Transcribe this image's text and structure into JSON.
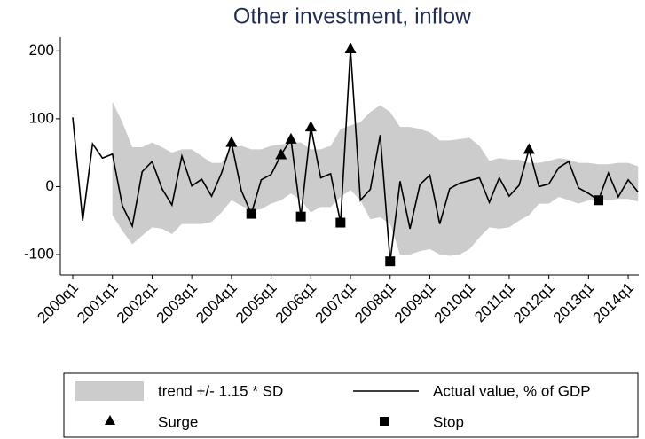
{
  "chart_data": {
    "type": "line",
    "title": "Other investment, inflow",
    "categories": [
      "2000q1",
      null,
      null,
      null,
      "2001q1",
      null,
      null,
      null,
      "2002q1",
      null,
      null,
      null,
      "2003q1",
      null,
      null,
      null,
      "2004q1",
      null,
      null,
      null,
      "2005q1",
      null,
      null,
      null,
      "2006q1",
      null,
      null,
      null,
      "2007q1",
      null,
      null,
      null,
      "2008q1",
      null,
      null,
      null,
      "2009q1",
      null,
      null,
      null,
      "2010q1",
      null,
      null,
      null,
      "2011q1",
      null,
      null,
      null,
      "2012q1",
      null,
      null,
      null,
      "2013q1",
      null,
      null,
      null,
      "2014q1",
      null
    ],
    "band": {
      "name": "trend +/- 1.15 * SD",
      "color": "#cccccc",
      "upper": [
        null,
        null,
        null,
        null,
        125,
        95,
        58,
        58,
        65,
        58,
        50,
        55,
        55,
        45,
        35,
        35,
        58,
        60,
        55,
        55,
        60,
        62,
        65,
        65,
        55,
        55,
        60,
        85,
        90,
        95,
        110,
        120,
        110,
        88,
        88,
        85,
        80,
        68,
        68,
        70,
        72,
        60,
        38,
        42,
        40,
        40,
        35,
        35,
        38,
        42,
        40,
        35,
        35,
        33,
        33,
        35,
        35,
        30
      ],
      "lower": [
        null,
        null,
        null,
        null,
        -42,
        -65,
        -85,
        -72,
        -60,
        -62,
        -70,
        -55,
        -55,
        -55,
        -52,
        -38,
        -20,
        -28,
        -35,
        -33,
        -25,
        -20,
        -10,
        -20,
        -38,
        -30,
        -30,
        -15,
        -5,
        -20,
        -48,
        -45,
        -55,
        -100,
        -100,
        -95,
        -92,
        -100,
        -102,
        -100,
        -92,
        -75,
        -60,
        -62,
        -60,
        -50,
        -42,
        -25,
        -25,
        -15,
        -20,
        -25,
        -20,
        -18,
        -20,
        -18,
        -18,
        -22
      ]
    },
    "series": [
      {
        "name": "Actual value, % of GDP",
        "color": "#000000",
        "marker": "line",
        "values": [
          102,
          -50,
          63,
          42,
          48,
          -28,
          -58,
          22,
          37,
          -3,
          -27,
          45,
          1,
          11,
          -14,
          20,
          65,
          -6,
          -40,
          10,
          18,
          47,
          70,
          -44,
          88,
          13,
          19,
          -53,
          203,
          -20,
          -4,
          76,
          -110,
          8,
          -62,
          3,
          17,
          -55,
          -3,
          5,
          9,
          13,
          -23,
          13,
          -14,
          2,
          55,
          0,
          4,
          28,
          37,
          -2,
          -10,
          -20,
          20,
          -15,
          10,
          -8
        ]
      },
      {
        "name": "Surge",
        "color": "#000000",
        "marker": "triangle",
        "values": [
          null,
          null,
          null,
          null,
          null,
          null,
          null,
          null,
          null,
          null,
          null,
          null,
          null,
          null,
          null,
          null,
          65,
          null,
          null,
          null,
          null,
          47,
          70,
          null,
          88,
          null,
          null,
          null,
          203,
          null,
          null,
          null,
          null,
          null,
          null,
          null,
          null,
          null,
          null,
          null,
          null,
          null,
          null,
          null,
          null,
          null,
          55,
          null,
          null,
          null,
          null,
          null,
          null,
          null,
          null,
          null,
          null,
          null
        ]
      },
      {
        "name": "Stop",
        "color": "#000000",
        "marker": "square",
        "values": [
          null,
          null,
          null,
          null,
          null,
          null,
          null,
          null,
          null,
          null,
          null,
          null,
          null,
          null,
          null,
          null,
          null,
          null,
          -40,
          null,
          null,
          null,
          null,
          -44,
          null,
          null,
          null,
          -53,
          null,
          null,
          null,
          null,
          -110,
          null,
          null,
          null,
          null,
          null,
          null,
          null,
          null,
          null,
          null,
          null,
          null,
          null,
          null,
          null,
          null,
          null,
          null,
          null,
          null,
          -20,
          null,
          null,
          null,
          null
        ]
      }
    ],
    "ylim": [
      -130,
      220
    ],
    "yticks": [
      -100,
      0,
      100,
      200
    ]
  }
}
